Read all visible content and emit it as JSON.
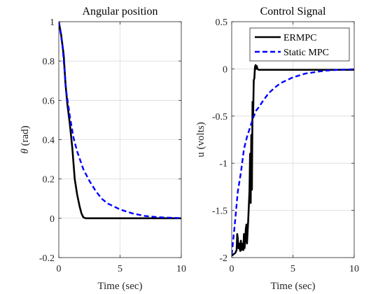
{
  "chart_data": [
    {
      "type": "line",
      "title": "Angular position",
      "xlabel": "Time (sec)",
      "ylabel_symbol": "θ",
      "ylabel_unit": "(rad)",
      "xlim": [
        0,
        10
      ],
      "ylim": [
        -0.2,
        1
      ],
      "xticks": [
        0,
        5,
        10
      ],
      "xtick_labels": [
        "0",
        "5",
        "10"
      ],
      "yticks": [
        -0.2,
        0,
        0.2,
        0.4,
        0.6,
        0.8,
        1
      ],
      "ytick_labels": [
        "-0.2",
        "0",
        "0.2",
        "0.4",
        "0.6",
        "0.8",
        "1"
      ],
      "grid": true,
      "series": [
        {
          "style": "solid",
          "color": "#000000",
          "x": [
            0,
            0.2,
            0.4,
            0.55,
            0.7,
            0.9,
            1.1,
            1.3,
            1.5,
            1.7,
            1.85,
            2.0,
            2.2,
            2.5,
            3,
            5,
            10
          ],
          "y": [
            1,
            0.93,
            0.83,
            0.68,
            0.58,
            0.48,
            0.36,
            0.2,
            0.12,
            0.06,
            0.025,
            0.005,
            0,
            0,
            0,
            0,
            0
          ]
        },
        {
          "style": "dashed",
          "color": "#0000ff",
          "x": [
            0,
            0.3,
            0.6,
            0.9,
            1.2,
            1.5,
            2.0,
            2.5,
            3.0,
            3.5,
            4.0,
            5.0,
            6.0,
            7.0,
            8.0,
            9.0,
            10.0
          ],
          "y": [
            1,
            0.88,
            0.65,
            0.52,
            0.41,
            0.34,
            0.25,
            0.19,
            0.14,
            0.1,
            0.075,
            0.045,
            0.025,
            0.012,
            0.006,
            0.003,
            0.001
          ]
        }
      ]
    },
    {
      "type": "line",
      "title": "Control Signal",
      "xlabel": "Time (sec)",
      "ylabel": "u (volts)",
      "xlim": [
        0,
        10
      ],
      "ylim": [
        -2,
        0.5
      ],
      "xticks": [
        0,
        5,
        10
      ],
      "xtick_labels": [
        "0",
        "5",
        "10"
      ],
      "yticks": [
        -2,
        -1.5,
        -1,
        -0.5,
        0,
        0.5
      ],
      "ytick_labels": [
        "-2",
        "-1.5",
        "-1",
        "-0.5",
        "0",
        "0.5"
      ],
      "grid": true,
      "legend": {
        "position": "top-right",
        "entries": [
          "ERMPC",
          "Static MPC"
        ]
      },
      "series": [
        {
          "name": "ERMPC",
          "style": "solid",
          "color": "#000000",
          "x": [
            0,
            0.2,
            0.3,
            0.4,
            0.45,
            0.5,
            0.55,
            0.6,
            0.65,
            0.7,
            0.75,
            0.8,
            0.85,
            0.9,
            0.95,
            1.0,
            1.05,
            1.1,
            1.15,
            1.2,
            1.25,
            1.3,
            1.35,
            1.4,
            1.45,
            1.5,
            1.55,
            1.6,
            1.65,
            1.7,
            1.75,
            1.8,
            1.85,
            1.9,
            1.95,
            2.0,
            2.05,
            2.1,
            2.2,
            2.5,
            3,
            5,
            7,
            10
          ],
          "y": [
            -1.98,
            -1.96,
            -1.95,
            -1.92,
            -1.75,
            -1.8,
            -1.9,
            -1.85,
            -1.9,
            -1.93,
            -1.82,
            -1.92,
            -1.88,
            -1.85,
            -1.92,
            -1.75,
            -1.9,
            -1.82,
            -1.7,
            -1.65,
            -1.85,
            -1.72,
            -1.6,
            -1.45,
            -1.3,
            -0.9,
            -1.42,
            -0.7,
            -1.28,
            -0.35,
            -0.5,
            -0.12,
            -0.1,
            0.02,
            0.04,
            0.0,
            0.03,
            0.0,
            -0.01,
            -0.01,
            -0.01,
            -0.01,
            -0.01,
            -0.01
          ]
        },
        {
          "name": "Static MPC",
          "style": "dashed",
          "color": "#0000ff",
          "x": [
            0,
            0.25,
            0.5,
            0.75,
            1.0,
            1.25,
            1.5,
            1.75,
            2.0,
            2.25,
            2.5,
            3.0,
            3.5,
            4.0,
            5.0,
            6.0,
            7.0,
            8.0,
            9.0,
            10.0
          ],
          "y": [
            -1.97,
            -1.65,
            -1.3,
            -1.1,
            -0.85,
            -0.72,
            -0.62,
            -0.52,
            -0.44,
            -0.4,
            -0.35,
            -0.26,
            -0.2,
            -0.15,
            -0.09,
            -0.05,
            -0.03,
            -0.015,
            -0.008,
            -0.004
          ]
        }
      ]
    }
  ]
}
